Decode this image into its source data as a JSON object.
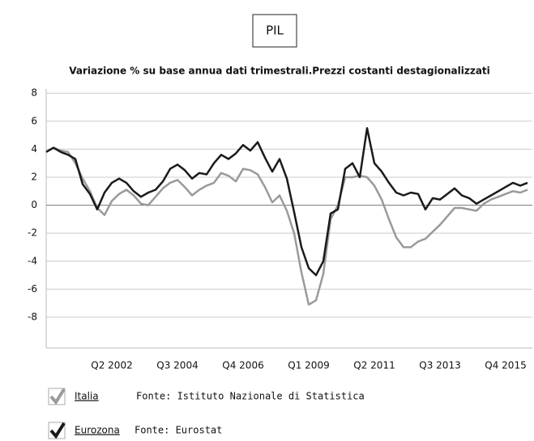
{
  "chart_data": {
    "type": "line",
    "title": "PIL",
    "subtitle": "Variazione % su base annua dati trimestrali.Prezzi costanti destagionalizzati",
    "categories": [
      null,
      null,
      null,
      null,
      null,
      null,
      null,
      null,
      null,
      "Q2 2002",
      null,
      null,
      null,
      null,
      null,
      null,
      null,
      null,
      "Q3 2004",
      null,
      null,
      null,
      null,
      null,
      null,
      null,
      null,
      "Q4 2006",
      null,
      null,
      null,
      null,
      null,
      null,
      null,
      null,
      "Q1 2009",
      null,
      null,
      null,
      null,
      null,
      null,
      null,
      null,
      "Q2 2011",
      null,
      null,
      null,
      null,
      null,
      null,
      null,
      null,
      "Q3 2013",
      null,
      null,
      null,
      null,
      null,
      null,
      null,
      null,
      "Q4 2015",
      null,
      null,
      null
    ],
    "series": [
      {
        "name": "Italia",
        "source": "Fonte: Istituto Nazionale di Statistica",
        "color": "#9a9a9a",
        "values": [
          3.8,
          4.1,
          3.9,
          3.8,
          3.0,
          1.9,
          1.0,
          -0.2,
          -0.7,
          0.3,
          0.8,
          1.1,
          0.7,
          0.1,
          0.0,
          0.6,
          1.2,
          1.6,
          1.8,
          1.3,
          0.7,
          1.1,
          1.4,
          1.6,
          2.3,
          2.1,
          1.7,
          2.6,
          2.5,
          2.2,
          1.3,
          0.2,
          0.7,
          -0.4,
          -2.0,
          -4.8,
          -7.1,
          -6.8,
          -4.9,
          -1.0,
          0.0,
          2.0,
          2.0,
          2.1,
          2.0,
          1.4,
          0.4,
          -1.0,
          -2.3,
          -3.0,
          -3.0,
          -2.6,
          -2.4,
          -1.9,
          -1.4,
          -0.8,
          -0.2,
          -0.2,
          -0.3,
          -0.4,
          0.1,
          0.4,
          0.6,
          0.8,
          1.0,
          0.9,
          1.1
        ]
      },
      {
        "name": "Eurozona",
        "source": "Fonte: Eurostat",
        "color": "#1a1a1a",
        "values": [
          3.8,
          4.1,
          3.8,
          3.6,
          3.3,
          1.5,
          0.8,
          -0.3,
          0.9,
          1.6,
          1.9,
          1.6,
          1.0,
          0.6,
          0.9,
          1.1,
          1.7,
          2.6,
          2.9,
          2.5,
          1.9,
          2.3,
          2.2,
          3.0,
          3.6,
          3.3,
          3.7,
          4.3,
          3.9,
          4.5,
          3.4,
          2.4,
          3.3,
          1.9,
          -0.5,
          -3.0,
          -4.5,
          -5.0,
          -4.0,
          -0.6,
          -0.3,
          2.6,
          3.0,
          2.0,
          5.5,
          3.0,
          2.4,
          1.6,
          0.9,
          0.7,
          0.9,
          0.8,
          -0.3,
          0.5,
          0.4,
          0.8,
          1.2,
          0.7,
          0.5,
          0.1,
          0.4,
          0.7,
          1.0,
          1.3,
          1.6,
          1.4,
          1.6
        ]
      }
    ],
    "ylim": [
      -10.2,
      8.3
    ],
    "yticks": [
      -8,
      -6,
      -4,
      -2,
      0,
      2,
      4,
      6,
      8
    ],
    "grid": true
  }
}
